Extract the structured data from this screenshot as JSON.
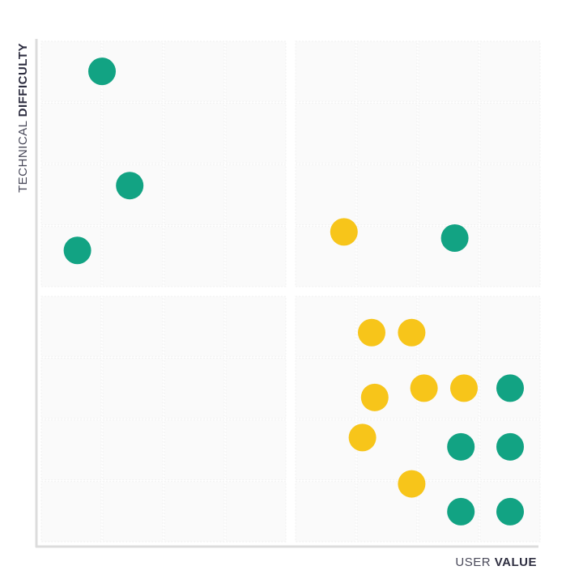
{
  "chart_data": {
    "type": "scatter",
    "xlabel_prefix": "USER",
    "xlabel_bold": "VALUE",
    "ylabel_prefix": "TECHNICAL",
    "ylabel_bold": "DIFFICULTY",
    "xlim": [
      0,
      8
    ],
    "ylim": [
      0,
      8
    ],
    "grid": true,
    "quadrants": 4,
    "colors": {
      "green": "#12a383",
      "yellow": "#f7c51a"
    },
    "series": [
      {
        "color": "green",
        "points": [
          [
            1.0,
            7.5
          ],
          [
            1.45,
            5.65
          ],
          [
            0.6,
            4.6
          ],
          [
            6.6,
            4.8
          ],
          [
            7.5,
            2.5
          ],
          [
            6.7,
            1.55
          ],
          [
            7.5,
            1.55
          ],
          [
            6.7,
            0.5
          ],
          [
            7.5,
            0.5
          ]
        ]
      },
      {
        "color": "yellow",
        "points": [
          [
            4.8,
            4.9
          ],
          [
            5.25,
            3.4
          ],
          [
            5.9,
            3.4
          ],
          [
            6.1,
            2.5
          ],
          [
            6.75,
            2.5
          ],
          [
            5.3,
            2.35
          ],
          [
            5.1,
            1.7
          ],
          [
            5.9,
            0.95
          ]
        ]
      }
    ]
  }
}
